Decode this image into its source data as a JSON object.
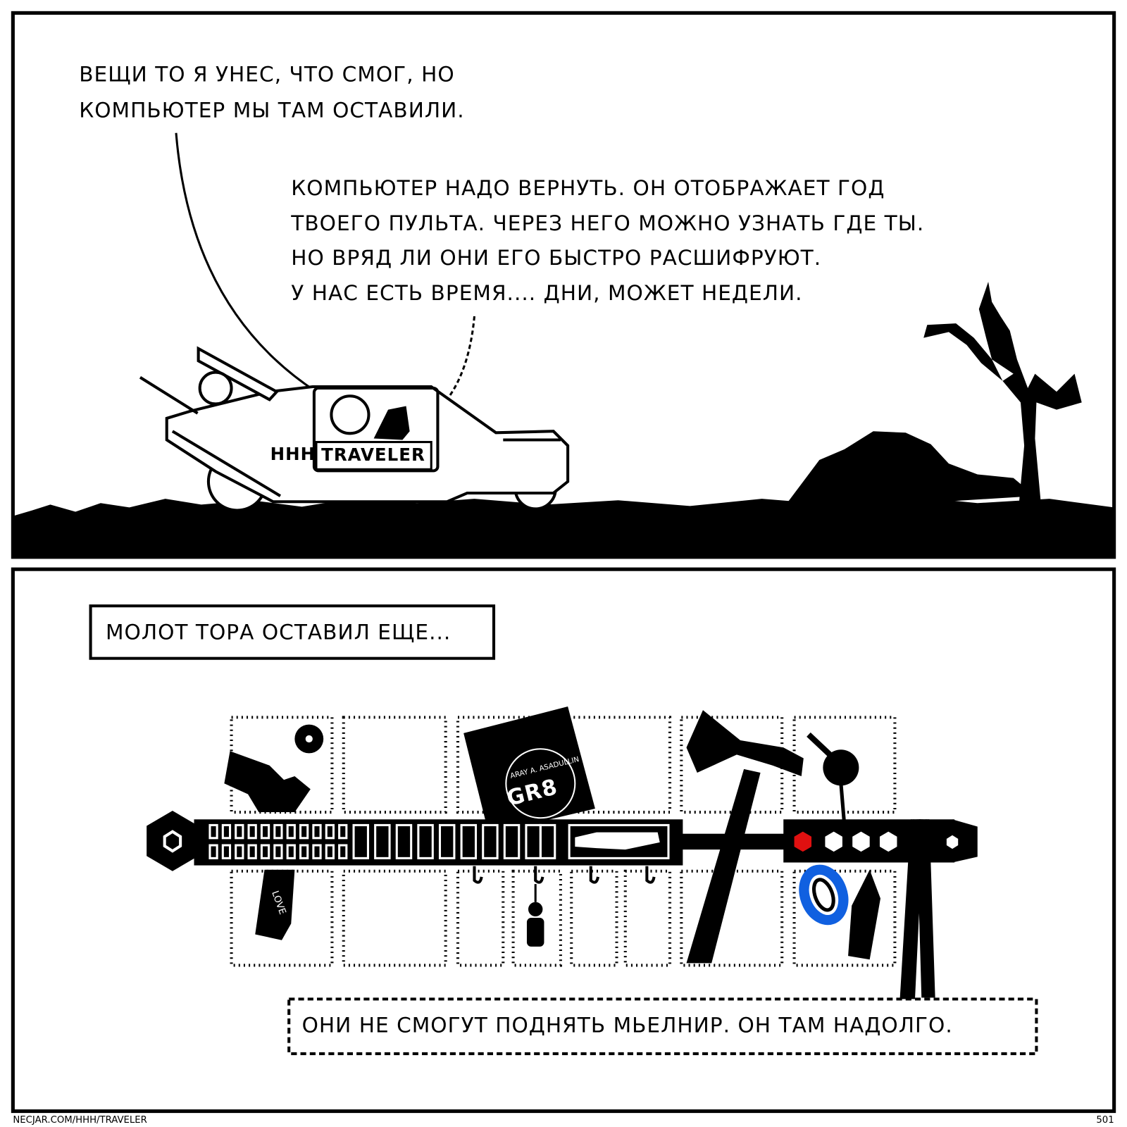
{
  "panels": [
    {
      "speech": [
        {
          "lines": [
            "ВЕЩИ ТО Я УНЕС, ЧТО СМОГ, НО",
            "КОМПЬЮТЕР МЫ ТАМ ОСТАВИЛИ."
          ]
        },
        {
          "lines": [
            "КОМПЬЮТЕР НАДО ВЕРНУТЬ. ОН ОТОБРАЖАЕТ ГОД",
            "ТВОЕГО ПУЛЬТА. ЧЕРЕЗ НЕГО МОЖНО УЗНАТЬ ГДЕ ТЫ.",
            "НО ВРЯД ЛИ ОНИ ЕГО БЫСТРО РАСШИФРУЮТ.",
            "У НАС ЕСТЬ ВРЕМЯ.... ДНИ, МОЖЕТ НЕДЕЛИ."
          ]
        }
      ],
      "car": {
        "brand": "HHH",
        "name": "TRAVELER"
      }
    },
    {
      "captions": [
        {
          "text": "МОЛОТ ТОРА ОСТАВИЛ ЕЩЕ..."
        },
        {
          "text": "ОНИ НЕ СМОГУТ ПОДНЯТЬ МЬЕЛНИР. ОН ТАМ НАДОЛГО."
        }
      ],
      "items": {
        "book_title": "GR8",
        "book_author": "ARAY A. ASADULLIN",
        "grip": "LOVE"
      }
    }
  ],
  "footer": {
    "url": "NECJAR.COM/HHH/TRAVELER",
    "page": "501"
  }
}
